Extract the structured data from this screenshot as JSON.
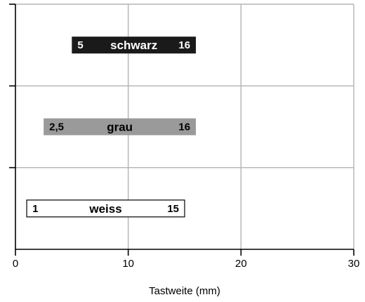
{
  "chart_data": {
    "type": "bar",
    "orientation": "horizontal-range",
    "title": "",
    "xlabel": "Tastweite (mm)",
    "ylabel": "",
    "xlim": [
      0,
      30
    ],
    "x_ticks": [
      "0",
      "10",
      "20",
      "30"
    ],
    "grid": true,
    "series": [
      {
        "name": "schwarz",
        "start": 5,
        "end": 16,
        "start_label": "5",
        "end_label": "16",
        "fill": "#1a1a1a",
        "text_color": "#ffffff"
      },
      {
        "name": "grau",
        "start": 2.5,
        "end": 16,
        "start_label": "2,5",
        "end_label": "16",
        "fill": "#9a9a9a",
        "text_color": "#000000"
      },
      {
        "name": "weiss",
        "start": 1,
        "end": 15,
        "start_label": "1",
        "end_label": "15",
        "fill": "#ffffff",
        "text_color": "#000000"
      }
    ]
  }
}
